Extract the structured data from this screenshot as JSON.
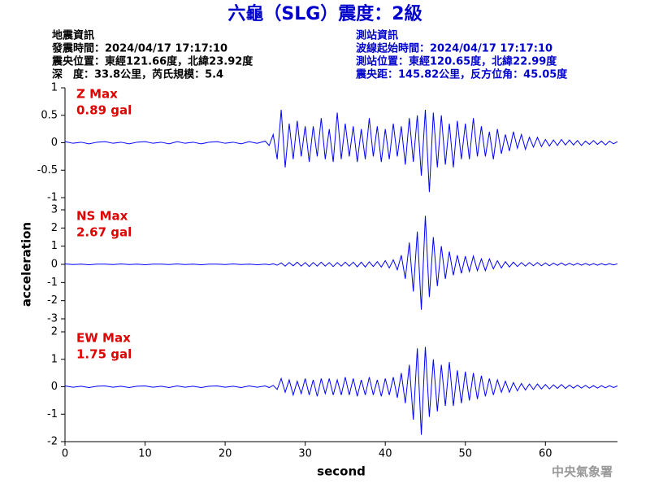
{
  "title": "六龜（SLG）震度：2級",
  "info_left": [
    "地震資訊",
    "發震時間：2024/04/17 17:17:10",
    "震央位置：東經121.66度，北緯23.92度",
    "深　度：33.8公里，芮氏規模：5.4"
  ],
  "info_right": [
    "測站資訊",
    "波線起始時間：2024/04/17 17:17:10",
    "測站位置：東經120.65度，北緯22.99度",
    "震央距：145.82公里，反方位角：45.05度"
  ],
  "footer": "中央氣象署",
  "chart_data": [
    {
      "type": "line",
      "color": "#0000ff",
      "annotations": [
        "Z Max",
        "0.89 gal"
      ],
      "x": [
        0,
        1,
        2,
        3,
        4,
        5,
        6,
        7,
        8,
        9,
        10,
        11,
        12,
        13,
        14,
        15,
        16,
        17,
        18,
        19,
        20,
        21,
        22,
        23,
        24,
        25,
        25.5,
        26,
        26.5,
        27,
        27.5,
        28,
        28.5,
        29,
        29.5,
        30,
        30.5,
        31,
        31.5,
        32,
        32.5,
        33,
        33.5,
        34,
        34.5,
        35,
        35.5,
        36,
        36.5,
        37,
        37.5,
        38,
        38.5,
        39,
        39.5,
        40,
        40.5,
        41,
        41.5,
        42,
        42.5,
        43,
        43.5,
        44,
        44.5,
        45,
        45.5,
        46,
        46.5,
        47,
        47.5,
        48,
        48.5,
        49,
        49.5,
        50,
        50.5,
        51,
        51.5,
        52,
        52.5,
        53,
        53.5,
        54,
        54.5,
        55,
        55.5,
        56,
        56.5,
        57,
        57.5,
        58,
        58.5,
        59,
        59.5,
        60,
        60.5,
        61,
        61.5,
        62,
        62.5,
        63,
        63.5,
        64,
        64.5,
        65,
        65.5,
        66,
        66.5,
        67,
        67.5,
        68,
        68.5,
        69
      ],
      "values": [
        0.02,
        -0.01,
        0.01,
        -0.02,
        0.01,
        0.02,
        -0.01,
        0.01,
        -0.02,
        0.01,
        0.02,
        -0.01,
        0.01,
        -0.02,
        0.02,
        -0.01,
        0.01,
        -0.02,
        0.01,
        0.02,
        -0.01,
        0.01,
        -0.02,
        0.02,
        -0.01,
        0.03,
        -0.05,
        0.15,
        -0.3,
        0.6,
        -0.45,
        0.35,
        -0.3,
        0.4,
        -0.25,
        0.3,
        -0.35,
        0.3,
        -0.25,
        0.45,
        -0.3,
        0.25,
        -0.35,
        0.55,
        -0.3,
        0.35,
        -0.25,
        0.3,
        -0.35,
        0.25,
        -0.3,
        0.45,
        -0.25,
        0.3,
        -0.35,
        0.25,
        -0.3,
        0.35,
        -0.25,
        0.3,
        -0.4,
        0.45,
        -0.35,
        0.5,
        -0.6,
        0.6,
        -0.9,
        0.55,
        -0.45,
        0.5,
        -0.4,
        0.35,
        -0.45,
        0.4,
        -0.3,
        0.35,
        -0.3,
        0.45,
        -0.25,
        0.3,
        -0.25,
        0.2,
        -0.3,
        0.25,
        -0.2,
        0.15,
        -0.15,
        0.2,
        -0.1,
        0.15,
        -0.12,
        0.1,
        -0.08,
        0.1,
        -0.07,
        0.06,
        -0.06,
        0.05,
        -0.05,
        0.06,
        -0.04,
        0.05,
        -0.04,
        0.04,
        -0.05,
        0.03,
        -0.03,
        0.04,
        -0.03,
        0.03,
        -0.04,
        0.03,
        -0.02,
        0.02
      ],
      "xlim": [
        0,
        69
      ],
      "ylim": [
        -1,
        1
      ],
      "yticks": [
        -1,
        -0.5,
        0,
        0.5,
        1
      ]
    },
    {
      "type": "line",
      "color": "#0000ff",
      "annotations": [
        "NS Max",
        "2.67 gal"
      ],
      "ylabel": "acceleration",
      "x": [
        0,
        1,
        2,
        3,
        4,
        5,
        6,
        7,
        8,
        9,
        10,
        11,
        12,
        13,
        14,
        15,
        16,
        17,
        18,
        19,
        20,
        21,
        22,
        23,
        24,
        25,
        25.5,
        26,
        26.5,
        27,
        27.5,
        28,
        28.5,
        29,
        29.5,
        30,
        30.5,
        31,
        31.5,
        32,
        32.5,
        33,
        33.5,
        34,
        34.5,
        35,
        35.5,
        36,
        36.5,
        37,
        37.5,
        38,
        38.5,
        39,
        39.5,
        40,
        40.5,
        41,
        41.5,
        42,
        42.5,
        43,
        43.5,
        44,
        44.5,
        45,
        45.5,
        46,
        46.5,
        47,
        47.5,
        48,
        48.5,
        49,
        49.5,
        50,
        50.5,
        51,
        51.5,
        52,
        52.5,
        53,
        53.5,
        54,
        54.5,
        55,
        55.5,
        56,
        56.5,
        57,
        57.5,
        58,
        58.5,
        59,
        59.5,
        60,
        60.5,
        61,
        61.5,
        62,
        62.5,
        63,
        63.5,
        64,
        64.5,
        65,
        65.5,
        66,
        66.5,
        67,
        67.5,
        68,
        68.5,
        69
      ],
      "values": [
        0.02,
        -0.01,
        0.01,
        -0.02,
        0.01,
        0.01,
        -0.01,
        0.02,
        -0.01,
        0.01,
        -0.02,
        0.01,
        0.01,
        -0.01,
        0.02,
        -0.01,
        0.01,
        -0.02,
        0.01,
        0.01,
        -0.01,
        0.02,
        -0.01,
        0.01,
        -0.02,
        0.01,
        -0.02,
        0.03,
        -0.05,
        0.08,
        -0.1,
        0.1,
        -0.08,
        0.12,
        -0.1,
        0.1,
        -0.12,
        0.1,
        -0.1,
        0.12,
        -0.1,
        0.1,
        -0.12,
        0.1,
        -0.1,
        0.12,
        -0.1,
        0.12,
        -0.14,
        0.12,
        -0.15,
        0.14,
        -0.12,
        0.15,
        -0.15,
        0.2,
        -0.2,
        0.25,
        -0.3,
        0.5,
        -0.8,
        1.2,
        -1.5,
        1.8,
        -2.5,
        2.67,
        -1.8,
        1.5,
        -1.2,
        1.0,
        -0.8,
        0.7,
        -0.6,
        0.5,
        -0.5,
        0.45,
        -0.4,
        0.45,
        -0.35,
        0.3,
        -0.35,
        0.3,
        -0.25,
        0.2,
        -0.2,
        0.15,
        -0.15,
        0.12,
        -0.12,
        0.1,
        -0.1,
        0.1,
        -0.08,
        0.1,
        -0.08,
        0.08,
        -0.08,
        0.07,
        -0.06,
        0.08,
        -0.06,
        0.06,
        -0.05,
        0.06,
        -0.05,
        0.05,
        -0.05,
        0.04,
        -0.05,
        0.04,
        -0.04,
        0.04,
        -0.03,
        0.03
      ],
      "xlim": [
        0,
        69
      ],
      "ylim": [
        -3,
        3
      ],
      "yticks": [
        -3,
        -2,
        -1,
        0,
        1,
        2,
        3
      ]
    },
    {
      "type": "line",
      "color": "#0000ff",
      "annotations": [
        "EW Max",
        "1.75 gal"
      ],
      "xlabel": "second",
      "x": [
        0,
        1,
        2,
        3,
        4,
        5,
        6,
        7,
        8,
        9,
        10,
        11,
        12,
        13,
        14,
        15,
        16,
        17,
        18,
        19,
        20,
        21,
        22,
        23,
        24,
        25,
        25.5,
        26,
        26.5,
        27,
        27.5,
        28,
        28.5,
        29,
        29.5,
        30,
        30.5,
        31,
        31.5,
        32,
        32.5,
        33,
        33.5,
        34,
        34.5,
        35,
        35.5,
        36,
        36.5,
        37,
        37.5,
        38,
        38.5,
        39,
        39.5,
        40,
        40.5,
        41,
        41.5,
        42,
        42.5,
        43,
        43.5,
        44,
        44.5,
        45,
        45.5,
        46,
        46.5,
        47,
        47.5,
        48,
        48.5,
        49,
        49.5,
        50,
        50.5,
        51,
        51.5,
        52,
        52.5,
        53,
        53.5,
        54,
        54.5,
        55,
        55.5,
        56,
        56.5,
        57,
        57.5,
        58,
        58.5,
        59,
        59.5,
        60,
        60.5,
        61,
        61.5,
        62,
        62.5,
        63,
        63.5,
        64,
        64.5,
        65,
        65.5,
        66,
        66.5,
        67,
        67.5,
        68,
        68.5,
        69
      ],
      "values": [
        0.03,
        -0.02,
        0.02,
        -0.03,
        0.02,
        0.03,
        -0.02,
        0.02,
        -0.03,
        0.02,
        0.03,
        -0.02,
        0.02,
        -0.03,
        0.03,
        -0.02,
        0.02,
        -0.03,
        0.02,
        0.03,
        -0.02,
        0.02,
        -0.03,
        0.03,
        -0.02,
        0.03,
        -0.03,
        0.05,
        -0.1,
        0.3,
        -0.2,
        0.25,
        -0.3,
        0.2,
        -0.25,
        0.3,
        -0.3,
        0.25,
        -0.35,
        0.3,
        -0.25,
        0.3,
        -0.3,
        0.25,
        -0.3,
        0.35,
        -0.3,
        0.3,
        -0.35,
        0.25,
        -0.3,
        0.35,
        -0.3,
        0.25,
        -0.35,
        0.3,
        -0.3,
        0.35,
        -0.4,
        0.5,
        -0.6,
        0.8,
        -1.2,
        1.4,
        -1.75,
        1.45,
        -1.1,
        1.0,
        -0.9,
        0.8,
        -0.7,
        0.9,
        -0.7,
        0.6,
        -0.6,
        0.55,
        -0.5,
        0.5,
        -0.45,
        0.4,
        -0.35,
        0.3,
        -0.3,
        0.25,
        -0.2,
        0.2,
        -0.2,
        0.15,
        -0.15,
        0.12,
        -0.12,
        0.1,
        -0.1,
        0.1,
        -0.08,
        0.08,
        -0.08,
        0.07,
        -0.06,
        0.08,
        -0.06,
        0.06,
        -0.05,
        0.06,
        -0.05,
        0.05,
        -0.05,
        0.04,
        -0.05,
        0.04,
        -0.04,
        0.04,
        -0.03,
        0.03
      ],
      "xlim": [
        0,
        69
      ],
      "ylim": [
        -2,
        2
      ],
      "yticks": [
        -2,
        -1,
        0,
        1,
        2
      ],
      "xticks": [
        0,
        10,
        20,
        30,
        40,
        50,
        60
      ]
    }
  ]
}
